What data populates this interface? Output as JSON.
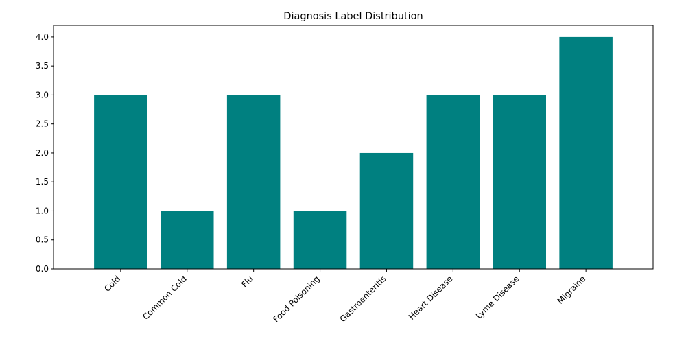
{
  "chart_data": {
    "type": "bar",
    "title": "Diagnosis Label Distribution",
    "xlabel": "",
    "ylabel": "",
    "categories": [
      "Cold",
      "Common Cold",
      "Flu",
      "Food Poisoning",
      "Gastroenteritis",
      "Heart Disease",
      "Lyme Disease",
      "Migraine"
    ],
    "values": [
      3,
      1,
      3,
      1,
      2,
      3,
      3,
      4
    ],
    "ylim": [
      0,
      4.2
    ],
    "yticks": [
      "0.0",
      "0.5",
      "1.0",
      "1.5",
      "2.0",
      "2.5",
      "3.0",
      "3.5",
      "4.0"
    ],
    "bar_color": "#008080",
    "grid": false,
    "legend": "none"
  }
}
